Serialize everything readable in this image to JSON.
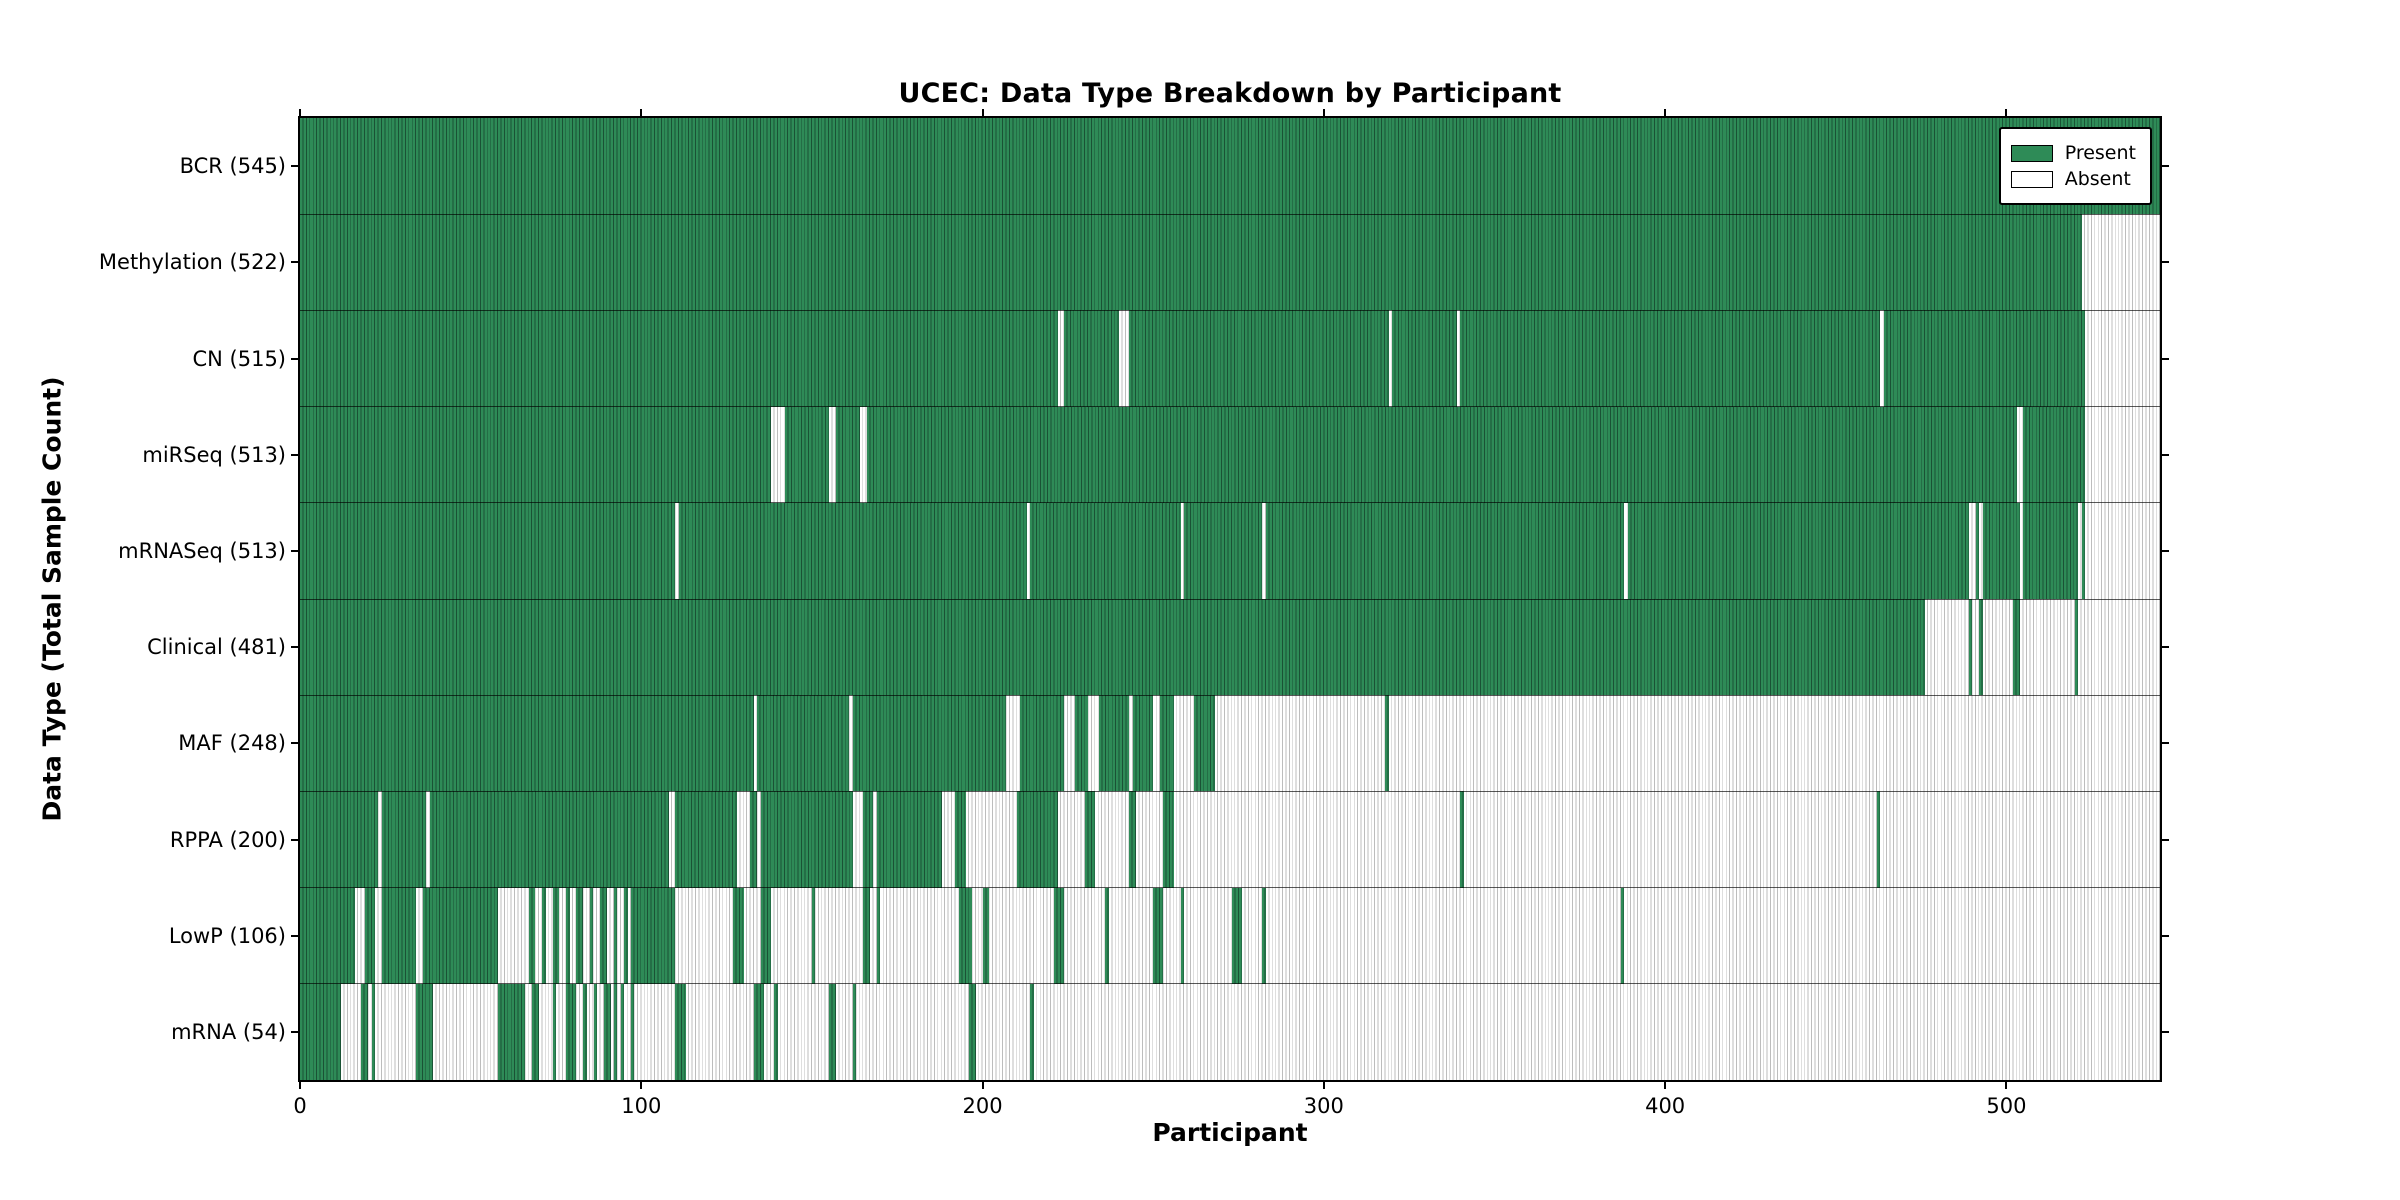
{
  "chart_data": {
    "type": "heatmap",
    "title": "UCEC: Data Type Breakdown by Participant",
    "xlabel": "Participant",
    "ylabel": "Data Type (Total Sample Count)",
    "x_range": [
      0,
      545
    ],
    "x_ticks": [
      0,
      100,
      200,
      300,
      400,
      500
    ],
    "grid": false,
    "legend_position": "upper-right",
    "colors": {
      "present": "#2e8b57",
      "present_edge": "#1a5235",
      "absent": "#ffffff",
      "absent_edge": "#bdbdbd",
      "axis": "#000000"
    },
    "legend": [
      {
        "label": "Present",
        "color": "#2e8b57"
      },
      {
        "label": "Absent",
        "color": "#ffffff"
      }
    ],
    "rows": [
      {
        "label": "BCR (545)",
        "name": "BCR",
        "total": 545,
        "present_ranges": [
          [
            0,
            545
          ]
        ]
      },
      {
        "label": "Methylation (522)",
        "name": "Methylation",
        "total": 522,
        "present_ranges": [
          [
            0,
            522
          ]
        ]
      },
      {
        "label": "CN (515)",
        "name": "CN",
        "total": 515,
        "present_ranges": [
          [
            0,
            222
          ],
          [
            224,
            240
          ],
          [
            243,
            319
          ],
          [
            320,
            339
          ],
          [
            340,
            463
          ],
          [
            464,
            523
          ]
        ]
      },
      {
        "label": "miRSeq (513)",
        "name": "miRSeq",
        "total": 513,
        "present_ranges": [
          [
            0,
            138
          ],
          [
            142,
            155
          ],
          [
            157,
            164
          ],
          [
            166,
            503
          ],
          [
            505,
            523
          ]
        ]
      },
      {
        "label": "mRNASeq (513)",
        "name": "mRNASeq",
        "total": 513,
        "present_ranges": [
          [
            0,
            110
          ],
          [
            111,
            213
          ],
          [
            214,
            258
          ],
          [
            259,
            282
          ],
          [
            283,
            388
          ],
          [
            389,
            489
          ],
          [
            491,
            492
          ],
          [
            493,
            504
          ],
          [
            505,
            521
          ],
          [
            522,
            523
          ]
        ]
      },
      {
        "label": "Clinical (481)",
        "name": "Clinical",
        "total": 481,
        "present_ranges": [
          [
            0,
            476
          ],
          [
            489,
            490
          ],
          [
            492,
            493
          ],
          [
            502,
            504
          ],
          [
            520,
            521
          ]
        ]
      },
      {
        "label": "MAF (248)",
        "name": "MAF",
        "total": 248,
        "present_ranges": [
          [
            0,
            133
          ],
          [
            134,
            161
          ],
          [
            162,
            207
          ],
          [
            211,
            224
          ],
          [
            227,
            231
          ],
          [
            234,
            243
          ],
          [
            244,
            250
          ],
          [
            252,
            256
          ],
          [
            262,
            268
          ],
          [
            318,
            319
          ]
        ]
      },
      {
        "label": "RPPA (200)",
        "name": "RPPA",
        "total": 200,
        "present_ranges": [
          [
            0,
            23
          ],
          [
            24,
            37
          ],
          [
            38,
            108
          ],
          [
            110,
            128
          ],
          [
            132,
            134
          ],
          [
            135,
            162
          ],
          [
            165,
            168
          ],
          [
            169,
            188
          ],
          [
            192,
            195
          ],
          [
            210,
            222
          ],
          [
            230,
            233
          ],
          [
            243,
            245
          ],
          [
            253,
            256
          ],
          [
            340,
            341
          ],
          [
            462,
            463
          ]
        ]
      },
      {
        "label": "LowP (106)",
        "name": "LowP",
        "total": 106,
        "present_ranges": [
          [
            0,
            16
          ],
          [
            19,
            22
          ],
          [
            24,
            34
          ],
          [
            36,
            58
          ],
          [
            67,
            69
          ],
          [
            71,
            72
          ],
          [
            74,
            76
          ],
          [
            78,
            79
          ],
          [
            81,
            83
          ],
          [
            85,
            86
          ],
          [
            88,
            90
          ],
          [
            92,
            93
          ],
          [
            95,
            96
          ],
          [
            97,
            110
          ],
          [
            127,
            130
          ],
          [
            135,
            138
          ],
          [
            150,
            151
          ],
          [
            165,
            167
          ],
          [
            169,
            170
          ],
          [
            193,
            197
          ],
          [
            200,
            202
          ],
          [
            221,
            224
          ],
          [
            236,
            237
          ],
          [
            250,
            253
          ],
          [
            258,
            259
          ],
          [
            273,
            276
          ],
          [
            282,
            283
          ],
          [
            387,
            388
          ]
        ]
      },
      {
        "label": "mRNA (54)",
        "name": "mRNA",
        "total": 54,
        "present_ranges": [
          [
            0,
            12
          ],
          [
            18,
            20
          ],
          [
            21,
            22
          ],
          [
            34,
            39
          ],
          [
            58,
            66
          ],
          [
            68,
            70
          ],
          [
            74,
            75
          ],
          [
            78,
            81
          ],
          [
            83,
            84
          ],
          [
            86,
            87
          ],
          [
            89,
            91
          ],
          [
            92,
            93
          ],
          [
            94,
            95
          ],
          [
            97,
            98
          ],
          [
            110,
            113
          ],
          [
            133,
            136
          ],
          [
            139,
            140
          ],
          [
            155,
            157
          ],
          [
            162,
            163
          ],
          [
            196,
            198
          ],
          [
            214,
            215
          ]
        ]
      }
    ]
  }
}
